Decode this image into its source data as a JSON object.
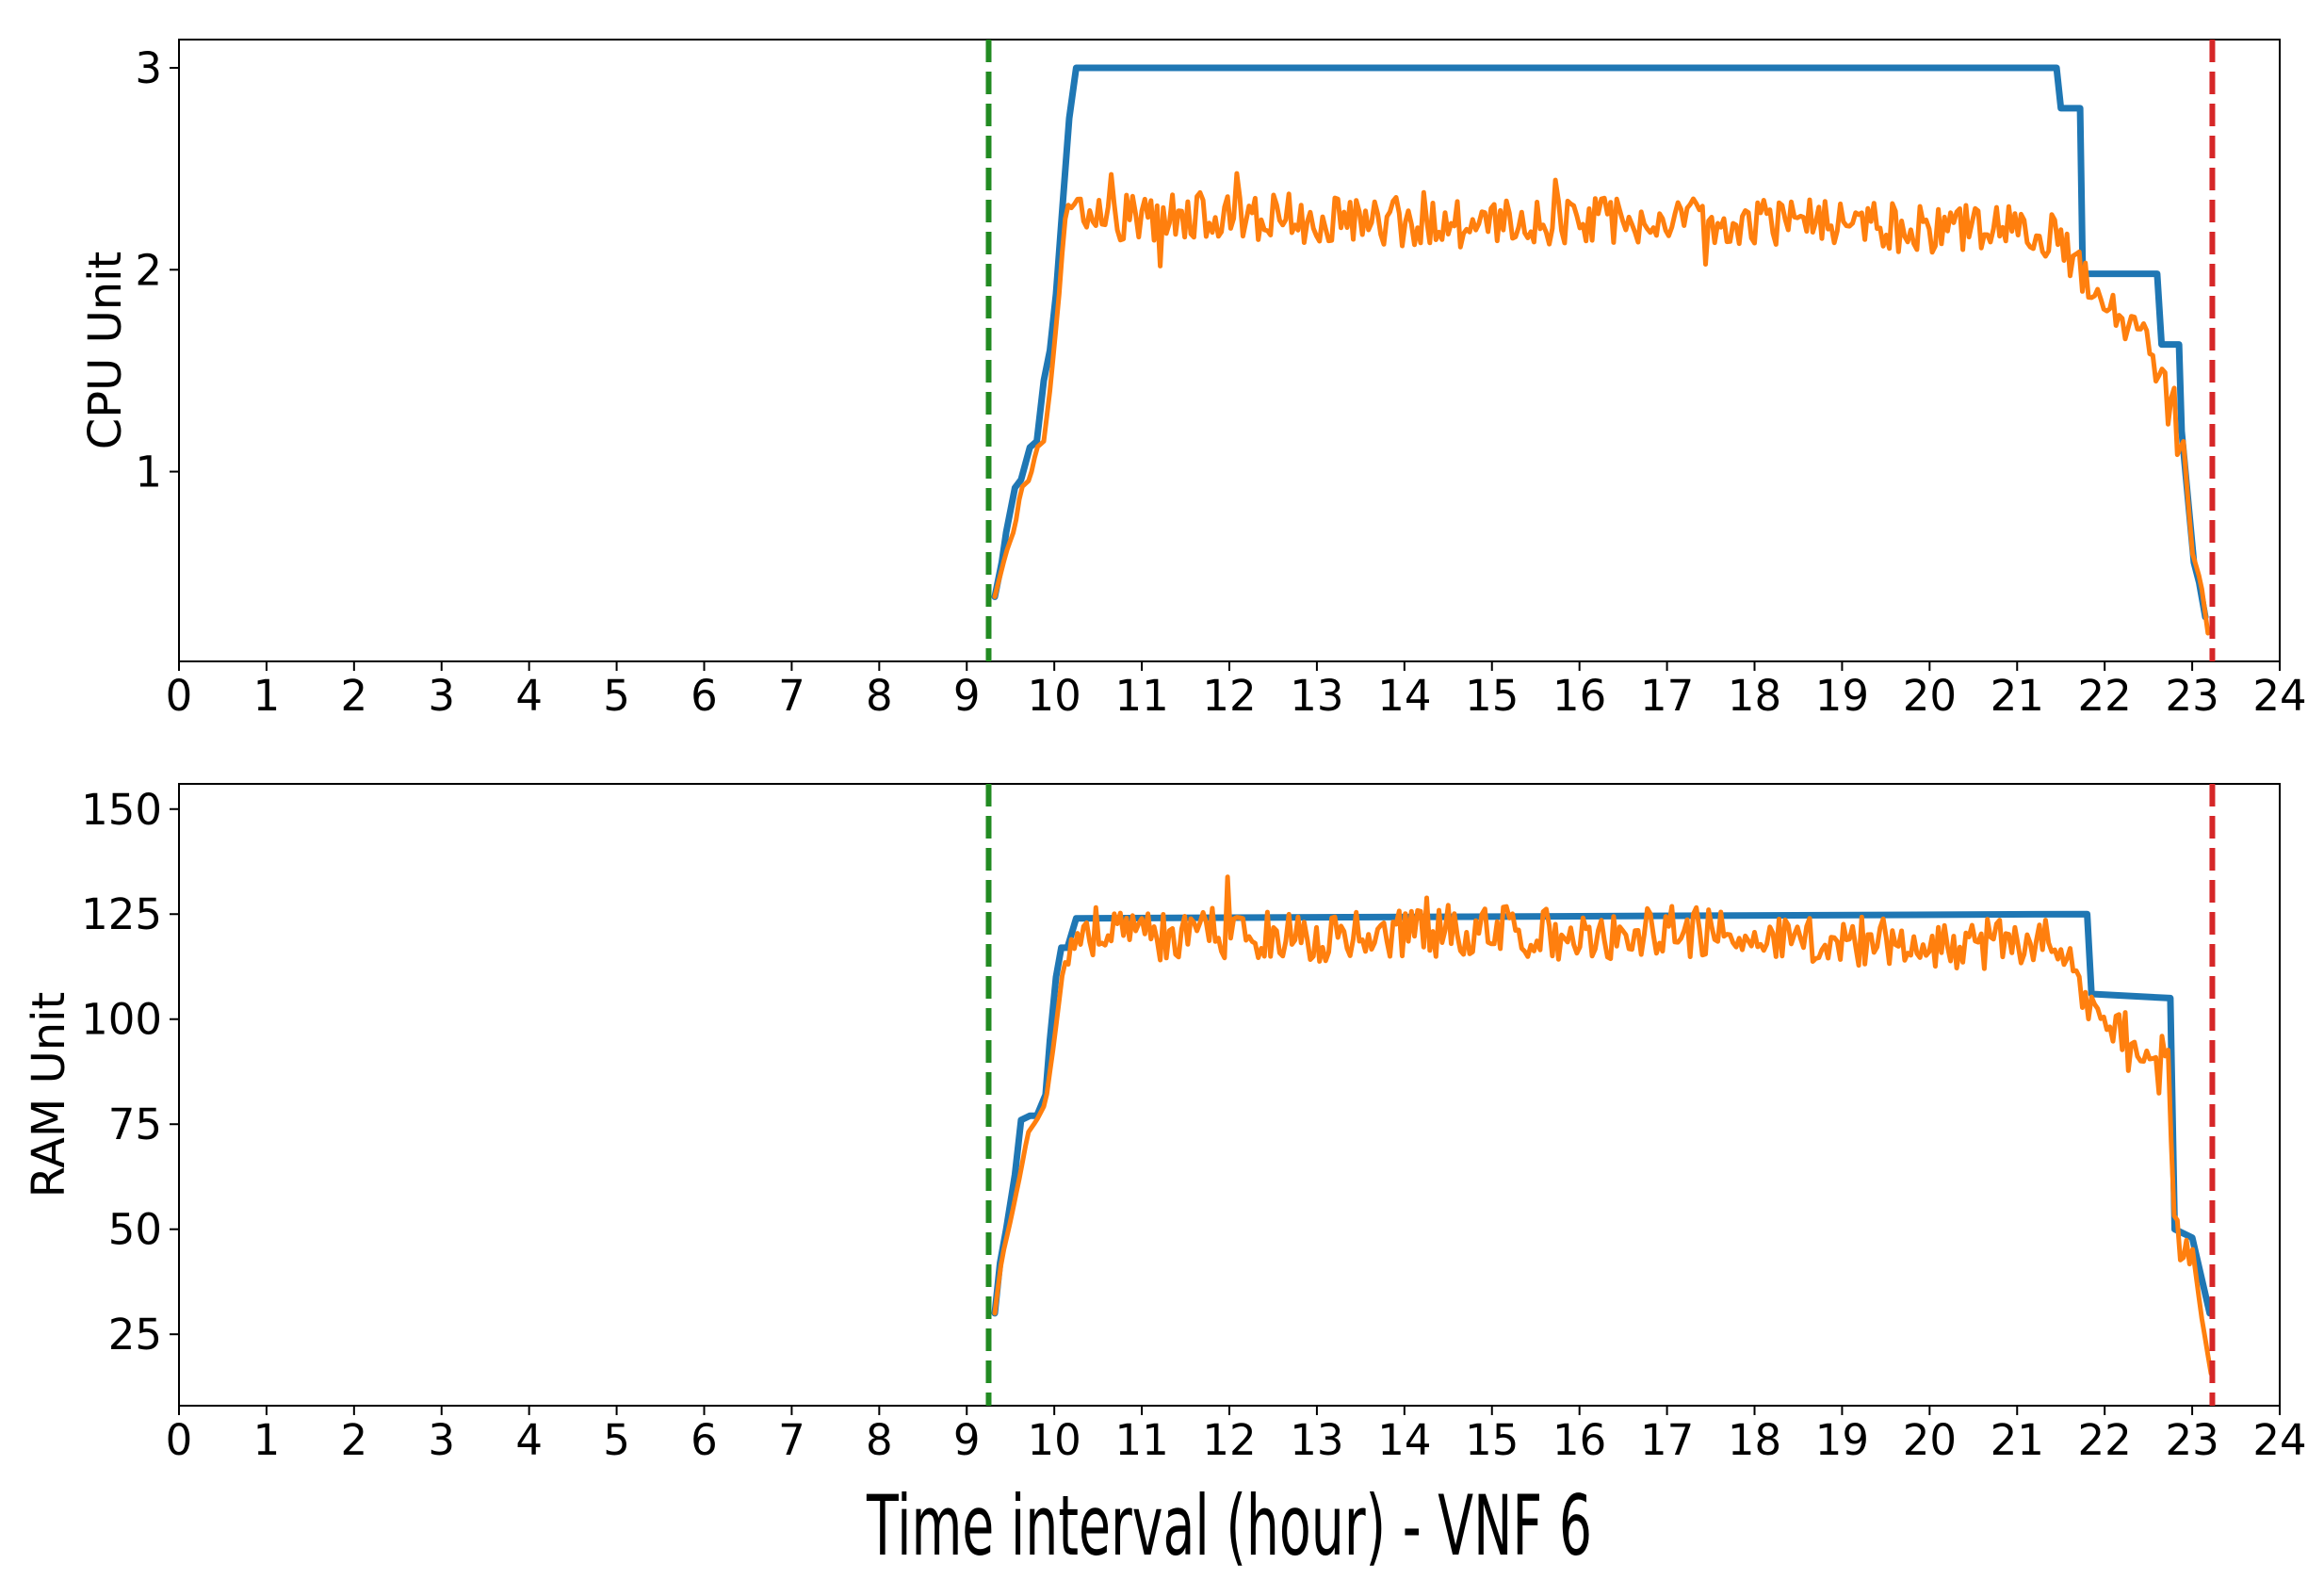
{
  "chart_data": [
    {
      "type": "line",
      "ylabel": "CPU Unit",
      "xlim": [
        0,
        24
      ],
      "ylim": [
        0.06,
        3.14
      ],
      "xticks": [
        "0",
        "1",
        "2",
        "3",
        "4",
        "5",
        "6",
        "7",
        "8",
        "9",
        "10",
        "11",
        "12",
        "13",
        "14",
        "15",
        "16",
        "17",
        "18",
        "19",
        "20",
        "21",
        "22",
        "23",
        "24"
      ],
      "yticks": [
        {
          "value": 1,
          "label": "1"
        },
        {
          "value": 2,
          "label": "2"
        },
        {
          "value": 3,
          "label": "3"
        }
      ],
      "vlines": [
        {
          "x": 9.25,
          "color": "#228b22",
          "style": "dashed"
        },
        {
          "x": 23.23,
          "color": "#d62728",
          "style": "dashed"
        }
      ],
      "series": [
        {
          "color": "#1f77b4",
          "x": [
            9.32,
            9.4,
            9.45,
            9.55,
            9.62,
            9.72,
            9.8,
            9.88,
            9.95,
            10.02,
            10.1,
            10.17,
            10.25,
            21.45,
            21.5,
            21.72,
            21.75,
            22.6,
            22.65,
            22.85,
            22.88,
            23.02,
            23.08,
            23.15
          ],
          "y": [
            0.38,
            0.55,
            0.7,
            0.92,
            0.96,
            1.12,
            1.15,
            1.45,
            1.6,
            1.88,
            2.35,
            2.75,
            3.0,
            3.0,
            2.8,
            2.8,
            1.98,
            1.98,
            1.63,
            1.63,
            1.2,
            0.55,
            0.45,
            0.28
          ]
        },
        {
          "color": "#ff7f0e",
          "noise": 0.12,
          "x": [
            9.32,
            9.45,
            9.55,
            9.62,
            9.72,
            9.8,
            9.88,
            9.95,
            10.05,
            10.12,
            10.2,
            10.4,
            11.0,
            12.0,
            13.0,
            14.0,
            15.0,
            16.0,
            17.0,
            18.0,
            19.0,
            20.0,
            21.0,
            21.5,
            21.65,
            21.8,
            22.0,
            22.2,
            22.4,
            22.6,
            22.75,
            22.9,
            23.0,
            23.1,
            23.18
          ],
          "y": [
            0.38,
            0.6,
            0.72,
            0.92,
            0.96,
            1.12,
            1.15,
            1.4,
            1.85,
            2.25,
            2.28,
            2.27,
            2.26,
            2.27,
            2.25,
            2.24,
            2.22,
            2.23,
            2.26,
            2.24,
            2.22,
            2.2,
            2.22,
            2.15,
            2.05,
            1.9,
            1.8,
            1.72,
            1.68,
            1.52,
            1.3,
            1.05,
            0.6,
            0.45,
            0.2
          ]
        }
      ]
    },
    {
      "type": "line",
      "ylabel": "RAM Unit",
      "xlabel": "Time interval (hour) - VNF 6",
      "xlim": [
        0,
        24
      ],
      "ylim": [
        8,
        156
      ],
      "xticks": [
        "0",
        "1",
        "2",
        "3",
        "4",
        "5",
        "6",
        "7",
        "8",
        "9",
        "10",
        "11",
        "12",
        "13",
        "14",
        "15",
        "16",
        "17",
        "18",
        "19",
        "20",
        "21",
        "22",
        "23",
        "24"
      ],
      "yticks": [
        {
          "value": 25,
          "label": "25"
        },
        {
          "value": 50,
          "label": "50"
        },
        {
          "value": 75,
          "label": "75"
        },
        {
          "value": 100,
          "label": "100"
        },
        {
          "value": 125,
          "label": "125"
        },
        {
          "value": 150,
          "label": "150"
        }
      ],
      "vlines": [
        {
          "x": 9.25,
          "color": "#228b22",
          "style": "dashed"
        },
        {
          "x": 23.23,
          "color": "#d62728",
          "style": "dashed"
        }
      ],
      "series": [
        {
          "color": "#1f77b4",
          "x": [
            9.32,
            9.38,
            9.45,
            9.55,
            9.62,
            9.72,
            9.8,
            9.9,
            9.95,
            10.02,
            10.08,
            10.15,
            10.25,
            21.8,
            21.85,
            22.75,
            22.8,
            23.0,
            23.2
          ],
          "y": [
            30,
            42,
            50,
            63,
            76,
            77,
            77,
            82,
            95,
            110,
            117,
            117,
            124,
            125,
            106,
            105,
            50,
            48,
            30
          ]
        },
        {
          "color": "#ff7f0e",
          "noise": 6,
          "x": [
            9.32,
            9.4,
            9.5,
            9.6,
            9.7,
            9.8,
            9.9,
            10.0,
            10.1,
            10.2,
            10.4,
            11.0,
            12.0,
            13.0,
            14.0,
            15.0,
            16.0,
            17.0,
            18.0,
            19.0,
            20.0,
            21.0,
            21.5,
            21.7,
            21.85,
            22.0,
            22.2,
            22.4,
            22.6,
            22.75,
            22.8,
            23.0,
            23.1,
            23.22
          ],
          "y": [
            30,
            43,
            52,
            62,
            73,
            76,
            80,
            95,
            112,
            118,
            121,
            120,
            120,
            119,
            120,
            121,
            120,
            121,
            120,
            119,
            118,
            118,
            118,
            110,
            100,
            97,
            96,
            95,
            92,
            88,
            47,
            46,
            30,
            15
          ]
        }
      ]
    }
  ]
}
